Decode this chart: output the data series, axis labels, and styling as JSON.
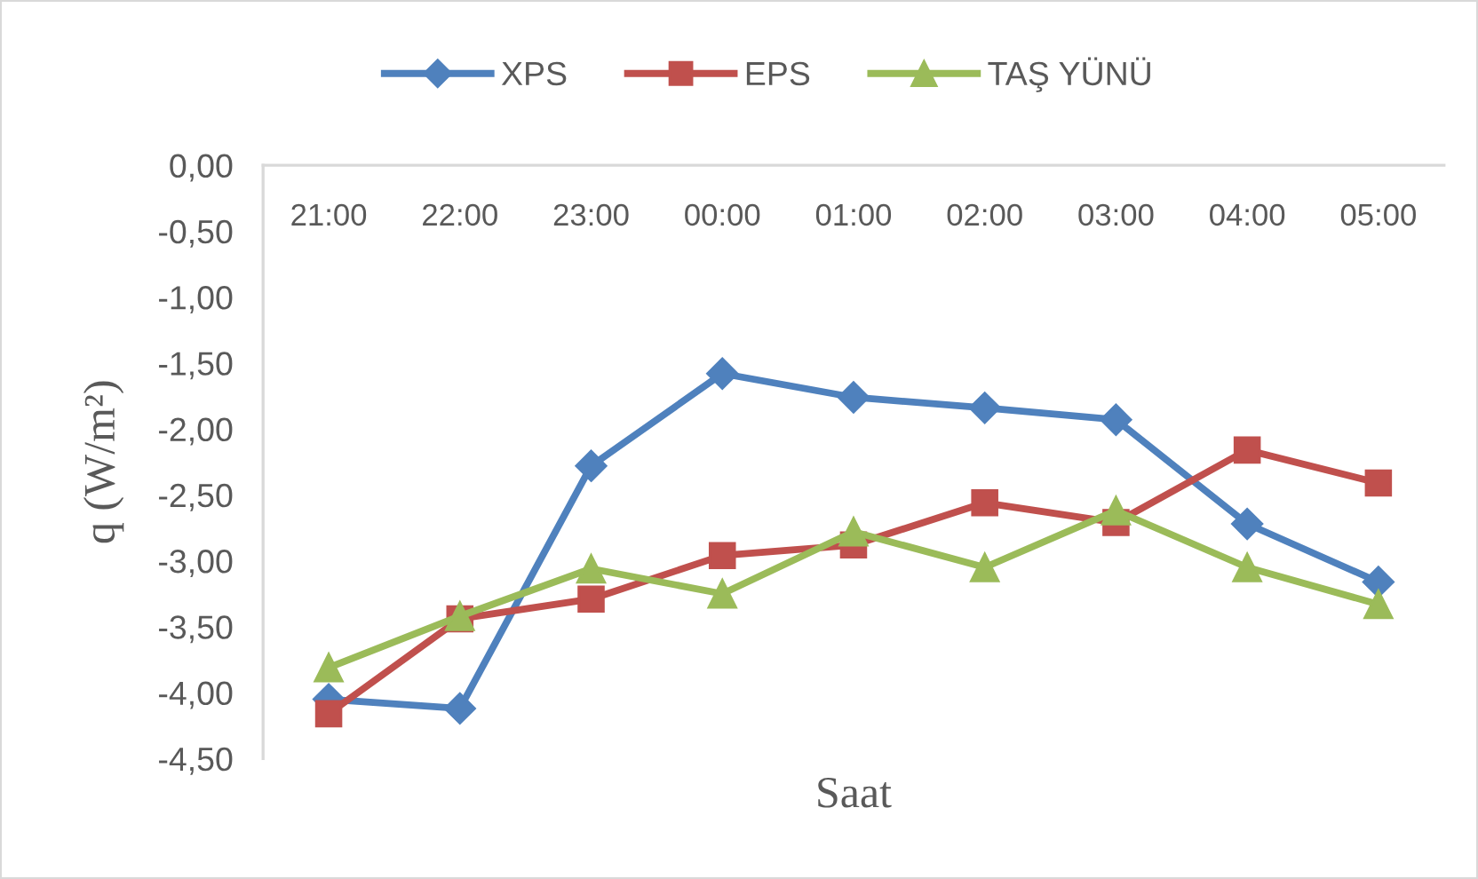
{
  "chart_data": {
    "type": "line",
    "xlabel": "Saat",
    "ylabel": "q (W/m²)",
    "categories": [
      "21:00",
      "22:00",
      "23:00",
      "00:00",
      "01:00",
      "02:00",
      "03:00",
      "04:00",
      "05:00"
    ],
    "series": [
      {
        "name": "XPS",
        "color": "#4f81bd",
        "marker": "diamond",
        "values": [
          -4.05,
          -4.12,
          -2.28,
          -1.58,
          -1.76,
          -1.84,
          -1.93,
          -2.72,
          -3.16
        ]
      },
      {
        "name": "EPS",
        "color": "#c0504d",
        "marker": "square",
        "values": [
          -4.16,
          -3.44,
          -3.29,
          -2.96,
          -2.88,
          -2.56,
          -2.71,
          -2.16,
          -2.41
        ]
      },
      {
        "name": "TAŞ YÜNÜ",
        "color": "#9bbb59",
        "marker": "triangle",
        "values": [
          -3.81,
          -3.42,
          -3.06,
          -3.25,
          -2.78,
          -3.05,
          -2.62,
          -3.05,
          -3.33
        ]
      }
    ],
    "ylim": [
      -4.5,
      0
    ],
    "yticks": [
      {
        "value": 0,
        "label": "0,00"
      },
      {
        "value": -0.5,
        "label": "-0,50"
      },
      {
        "value": -1,
        "label": "-1,00"
      },
      {
        "value": -1.5,
        "label": "-1,50"
      },
      {
        "value": -2,
        "label": "-2,00"
      },
      {
        "value": -2.5,
        "label": "-2,50"
      },
      {
        "value": -3,
        "label": "-3,00"
      },
      {
        "value": -3.5,
        "label": "-3,50"
      },
      {
        "value": -4,
        "label": "-4,00"
      },
      {
        "value": -4.5,
        "label": "-4,50"
      }
    ],
    "legend": "top",
    "line_style": "solid"
  }
}
